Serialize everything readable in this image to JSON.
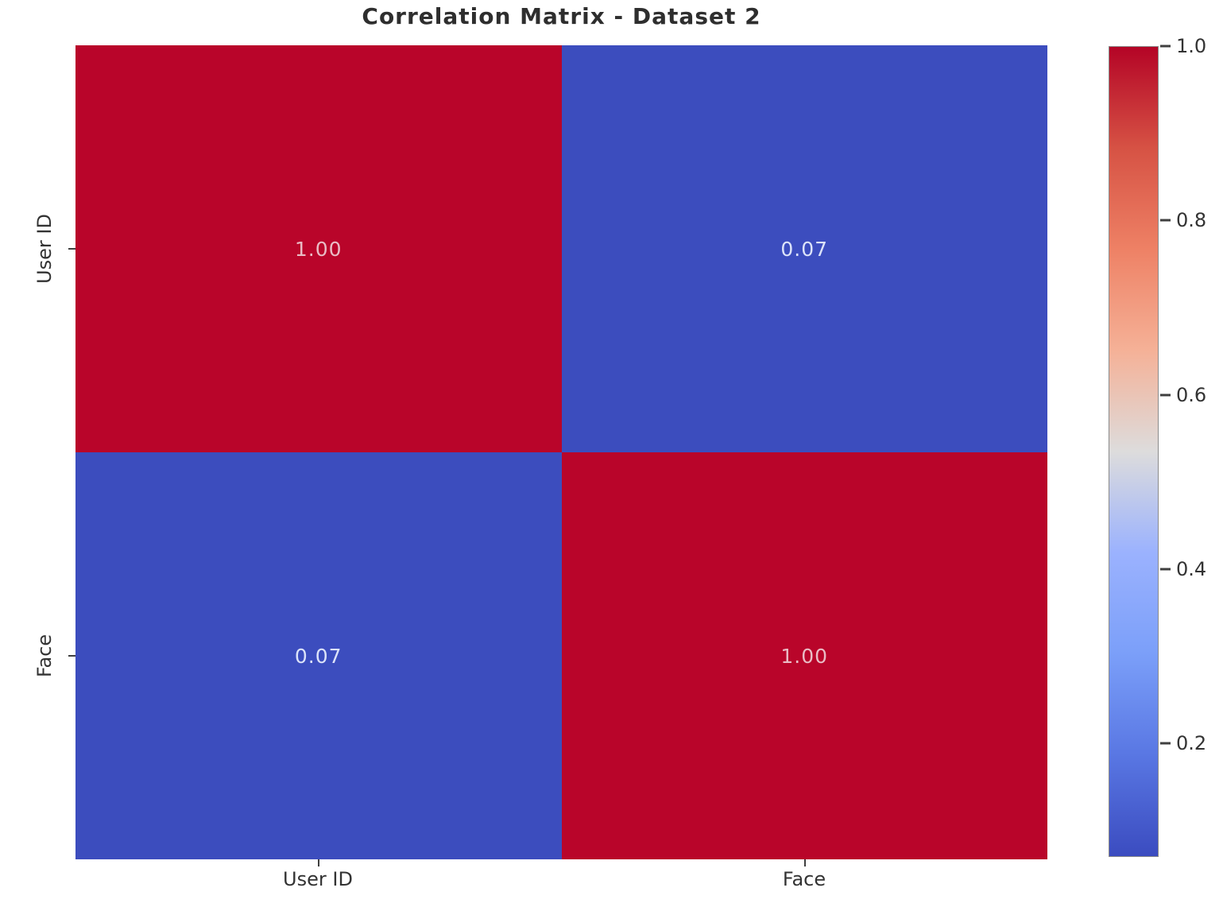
{
  "chart_data": {
    "type": "heatmap",
    "title": "Correlation Matrix - Dataset 2",
    "categories": [
      "User ID",
      "Face"
    ],
    "matrix": [
      [
        1.0,
        0.07
      ],
      [
        0.07,
        1.0
      ]
    ],
    "cells": [
      {
        "row": 0,
        "col": 0,
        "value": 1.0,
        "label": "1.00",
        "color": "#b9052a",
        "text_color": "#e9bcc5"
      },
      {
        "row": 0,
        "col": 1,
        "value": 0.07,
        "label": "0.07",
        "color": "#3c4dbe",
        "text_color": "#dce3f9"
      },
      {
        "row": 1,
        "col": 0,
        "value": 0.07,
        "label": "0.07",
        "color": "#3c4dbe",
        "text_color": "#dce3f9"
      },
      {
        "row": 1,
        "col": 1,
        "value": 1.0,
        "label": "1.00",
        "color": "#b9052a",
        "text_color": "#e9bcc5"
      }
    ],
    "colormap": "coolwarm",
    "vmin": 0.07,
    "vmax": 1.0,
    "colorbar": {
      "ticks": [
        {
          "value": 1.0,
          "label": "1.0"
        },
        {
          "value": 0.8,
          "label": "0.8"
        },
        {
          "value": 0.6,
          "label": "0.6"
        },
        {
          "value": 0.4,
          "label": "0.4"
        },
        {
          "value": 0.2,
          "label": "0.2"
        }
      ],
      "gradient_stops": [
        {
          "pos": 0,
          "color": "#b40426"
        },
        {
          "pos": 12.5,
          "color": "#d65244"
        },
        {
          "pos": 25,
          "color": "#ee8165"
        },
        {
          "pos": 37.5,
          "color": "#f5b197"
        },
        {
          "pos": 50,
          "color": "#dddcdc"
        },
        {
          "pos": 62.5,
          "color": "#9bb2fe"
        },
        {
          "pos": 75,
          "color": "#7b9ff9"
        },
        {
          "pos": 87.5,
          "color": "#5977e3"
        },
        {
          "pos": 100,
          "color": "#3b4cc0"
        }
      ]
    },
    "legend": "colorbar-right",
    "grid": false,
    "xlabel": "",
    "ylabel": ""
  }
}
